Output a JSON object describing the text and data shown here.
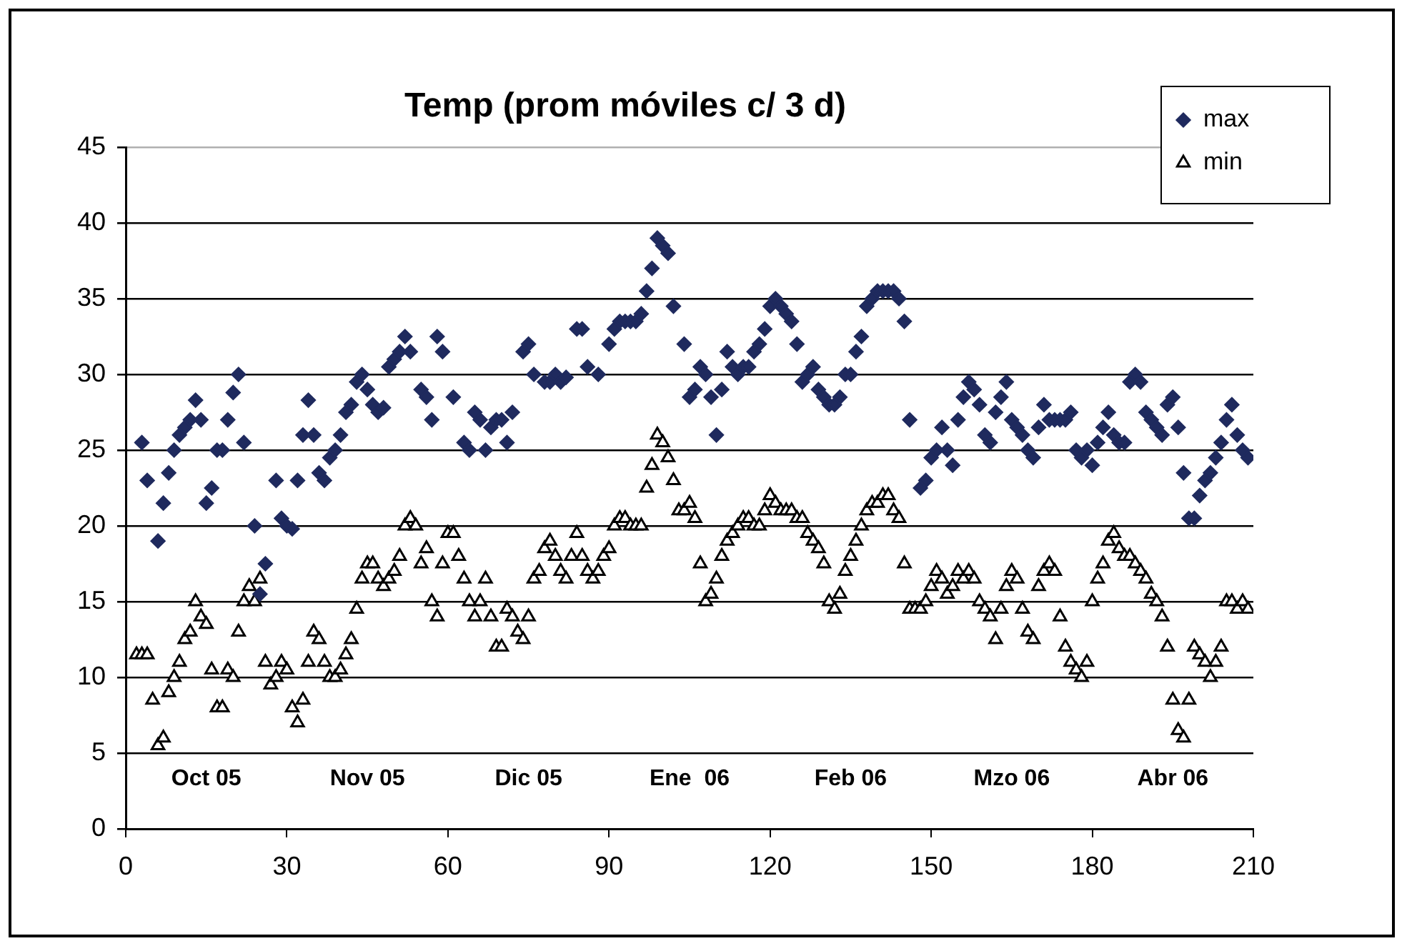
{
  "chart_data": {
    "type": "scatter",
    "title": "Temp (prom móviles c/ 3 d)",
    "xlim": [
      0,
      210
    ],
    "xticks": [
      0,
      30,
      60,
      90,
      120,
      150,
      180,
      210
    ],
    "ylim": [
      0,
      45
    ],
    "yticks": [
      0,
      5,
      10,
      15,
      20,
      25,
      30,
      35,
      40,
      45
    ],
    "grid": "y",
    "legend": "top right",
    "annotations": [
      "Oct 05",
      "Nov 05",
      "Dic 05",
      "Ene  06",
      "Feb 06",
      "Mzo 06",
      "Abr 06"
    ],
    "series": [
      {
        "name": "max",
        "color": "#1f2a5e",
        "marker": "diamond",
        "x": [
          3,
          4,
          6,
          7,
          8,
          9,
          10,
          11,
          12,
          13,
          14,
          15,
          16,
          17,
          18,
          19,
          20,
          21,
          22,
          24,
          25,
          26,
          28,
          29,
          30,
          31,
          32,
          33,
          34,
          35,
          36,
          37,
          38,
          39,
          40,
          41,
          42,
          43,
          44,
          45,
          46,
          47,
          48,
          49,
          50,
          51,
          52,
          53,
          55,
          56,
          57,
          58,
          59,
          61,
          63,
          64,
          65,
          66,
          67,
          68,
          69,
          70,
          71,
          72,
          74,
          75,
          76,
          78,
          79,
          80,
          81,
          82,
          84,
          85,
          86,
          88,
          90,
          91,
          92,
          93,
          94,
          95,
          96,
          97,
          98,
          99,
          100,
          101,
          102,
          104,
          105,
          106,
          107,
          108,
          109,
          110,
          111,
          112,
          113,
          114,
          115,
          116,
          117,
          118,
          119,
          120,
          121,
          122,
          123,
          124,
          125,
          126,
          127,
          128,
          129,
          130,
          131,
          132,
          133,
          134,
          135,
          136,
          137,
          138,
          139,
          140,
          141,
          142,
          143,
          144,
          145,
          146,
          148,
          149,
          150,
          151,
          152,
          153,
          154,
          155,
          156,
          157,
          158,
          159,
          160,
          161,
          162,
          163,
          164,
          165,
          166,
          167,
          168,
          169,
          170,
          171,
          172,
          173,
          174,
          175,
          176,
          177,
          178,
          179,
          180,
          181,
          182,
          183,
          184,
          185,
          186,
          187,
          188,
          189,
          190,
          191,
          192,
          193,
          194,
          195,
          196,
          197,
          198,
          199,
          200,
          201,
          202,
          203,
          204,
          205,
          206,
          207,
          208,
          209
        ],
        "values": [
          25.5,
          23,
          19,
          21.5,
          23.5,
          25,
          26,
          26.5,
          27,
          28.3,
          27,
          21.5,
          22.5,
          25,
          25,
          27,
          28.8,
          30,
          25.5,
          20,
          15.5,
          17.5,
          23,
          20.5,
          20,
          19.8,
          23,
          26,
          28.3,
          26,
          23.5,
          23,
          24.5,
          25,
          26,
          27.5,
          28,
          29.5,
          30,
          29,
          28,
          27.5,
          27.8,
          30.5,
          31,
          31.5,
          32.5,
          31.5,
          29,
          28.5,
          27,
          32.5,
          31.5,
          28.5,
          25.5,
          25,
          27.5,
          27,
          25,
          26.5,
          27,
          27,
          25.5,
          27.5,
          31.5,
          32,
          30,
          29.5,
          29.5,
          30,
          29.5,
          29.8,
          33,
          33,
          30.5,
          30,
          32,
          33,
          33.5,
          33.5,
          33.5,
          33.5,
          34,
          35.5,
          37,
          39,
          38.5,
          38,
          34.5,
          32,
          28.5,
          29,
          30.5,
          30,
          28.5,
          26,
          29,
          31.5,
          30.5,
          30,
          30.5,
          30.5,
          31.5,
          32,
          33,
          34.5,
          35,
          34.5,
          34,
          33.5,
          32,
          29.5,
          30,
          30.5,
          29,
          28.5,
          28,
          28,
          28.5,
          30,
          30,
          31.5,
          32.5,
          34.5,
          35,
          35.5,
          35.5,
          35.5,
          35.5,
          35,
          33.5,
          27,
          22.5,
          23,
          24.5,
          25,
          26.5,
          25,
          24,
          27,
          28.5,
          29.5,
          29,
          28,
          26,
          25.5,
          27.5,
          28.5,
          29.5,
          27,
          26.5,
          26,
          25,
          24.5,
          26.5,
          28,
          27,
          27,
          27,
          27,
          27.5,
          25,
          24.5,
          25,
          24,
          25.5,
          26.5,
          27.5,
          26,
          25.5,
          25.5,
          29.5,
          30,
          29.5,
          27.5,
          27,
          26.5,
          26,
          28,
          28.5,
          26.5,
          23.5,
          20.5,
          20.5,
          22,
          23,
          23.5,
          24.5,
          25.5,
          27,
          28,
          26,
          25,
          24.5
        ]
      },
      {
        "name": "min",
        "color": "#000000",
        "marker": "triangle",
        "x": [
          2,
          3,
          4,
          5,
          6,
          7,
          8,
          9,
          10,
          11,
          12,
          13,
          14,
          15,
          16,
          17,
          18,
          19,
          20,
          21,
          22,
          23,
          24,
          25,
          26,
          27,
          28,
          29,
          30,
          31,
          32,
          33,
          34,
          35,
          36,
          37,
          38,
          39,
          40,
          41,
          42,
          43,
          44,
          45,
          46,
          47,
          48,
          49,
          50,
          51,
          52,
          53,
          54,
          55,
          56,
          57,
          58,
          59,
          60,
          61,
          62,
          63,
          64,
          65,
          66,
          67,
          68,
          69,
          70,
          71,
          72,
          73,
          74,
          75,
          76,
          77,
          78,
          79,
          80,
          81,
          82,
          83,
          84,
          85,
          86,
          87,
          88,
          89,
          90,
          91,
          92,
          93,
          94,
          95,
          96,
          97,
          98,
          99,
          100,
          101,
          102,
          103,
          104,
          105,
          106,
          107,
          108,
          109,
          110,
          111,
          112,
          113,
          114,
          115,
          116,
          117,
          118,
          119,
          120,
          121,
          122,
          123,
          124,
          125,
          126,
          127,
          128,
          129,
          130,
          131,
          132,
          133,
          134,
          135,
          136,
          137,
          138,
          139,
          140,
          141,
          142,
          143,
          144,
          145,
          146,
          147,
          148,
          149,
          150,
          151,
          152,
          153,
          154,
          155,
          156,
          157,
          158,
          159,
          160,
          161,
          162,
          163,
          164,
          165,
          166,
          167,
          168,
          169,
          170,
          171,
          172,
          173,
          174,
          175,
          176,
          177,
          178,
          179,
          180,
          181,
          182,
          183,
          184,
          185,
          186,
          187,
          188,
          189,
          190,
          191,
          192,
          193,
          194,
          195,
          196,
          197,
          198,
          199,
          200,
          201,
          202,
          203,
          204,
          205,
          206,
          207,
          208,
          209
        ],
        "values": [
          11.5,
          11.5,
          11.5,
          8.5,
          5.5,
          6,
          9,
          10,
          11,
          12.5,
          13,
          15,
          14,
          13.5,
          10.5,
          8,
          8,
          10.5,
          10,
          13,
          15,
          16,
          15,
          16.5,
          11,
          9.5,
          10,
          11,
          10.5,
          8,
          7,
          8.5,
          11,
          13,
          12.5,
          11,
          10,
          10,
          10.5,
          11.5,
          12.5,
          14.5,
          16.5,
          17.5,
          17.5,
          16.5,
          16,
          16.5,
          17,
          18,
          20,
          20.5,
          20,
          17.5,
          18.5,
          15,
          14,
          17.5,
          19.5,
          19.5,
          18,
          16.5,
          15,
          14,
          15,
          16.5,
          14,
          12,
          12,
          14.5,
          14,
          13,
          12.5,
          14,
          16.5,
          17,
          18.5,
          19,
          18,
          17,
          16.5,
          18,
          19.5,
          18,
          17,
          16.5,
          17,
          18,
          18.5,
          20,
          20.5,
          20.5,
          20,
          20,
          20,
          22.5,
          24,
          26,
          25.5,
          24.5,
          23,
          21,
          21,
          21.5,
          20.5,
          17.5,
          15,
          15.5,
          16.5,
          18,
          19,
          19.5,
          20,
          20.5,
          20.5,
          20,
          20,
          21,
          22,
          21.5,
          21,
          21,
          21,
          20.5,
          20.5,
          19.5,
          19,
          18.5,
          17.5,
          15,
          14.5,
          15.5,
          17,
          18,
          19,
          20,
          21,
          21.5,
          21.5,
          22,
          22,
          21,
          20.5,
          17.5,
          14.5,
          14.5,
          14.5,
          15,
          16,
          17,
          16.5,
          15.5,
          16,
          17,
          16.5,
          17,
          16.5,
          15,
          14.5,
          14,
          12.5,
          14.5,
          16,
          17,
          16.5,
          14.5,
          13,
          12.5,
          16,
          17,
          17.5,
          17,
          14,
          12,
          11,
          10.5,
          10,
          11,
          15,
          16.5,
          17.5,
          19,
          19.5,
          18.5,
          18,
          18,
          17.5,
          17,
          16.5,
          15.5,
          15,
          14,
          12,
          8.5,
          6.5,
          6,
          8.5,
          12,
          11.5,
          11,
          10,
          11,
          12,
          15,
          15,
          14.5,
          15,
          14.5
        ]
      }
    ]
  }
}
